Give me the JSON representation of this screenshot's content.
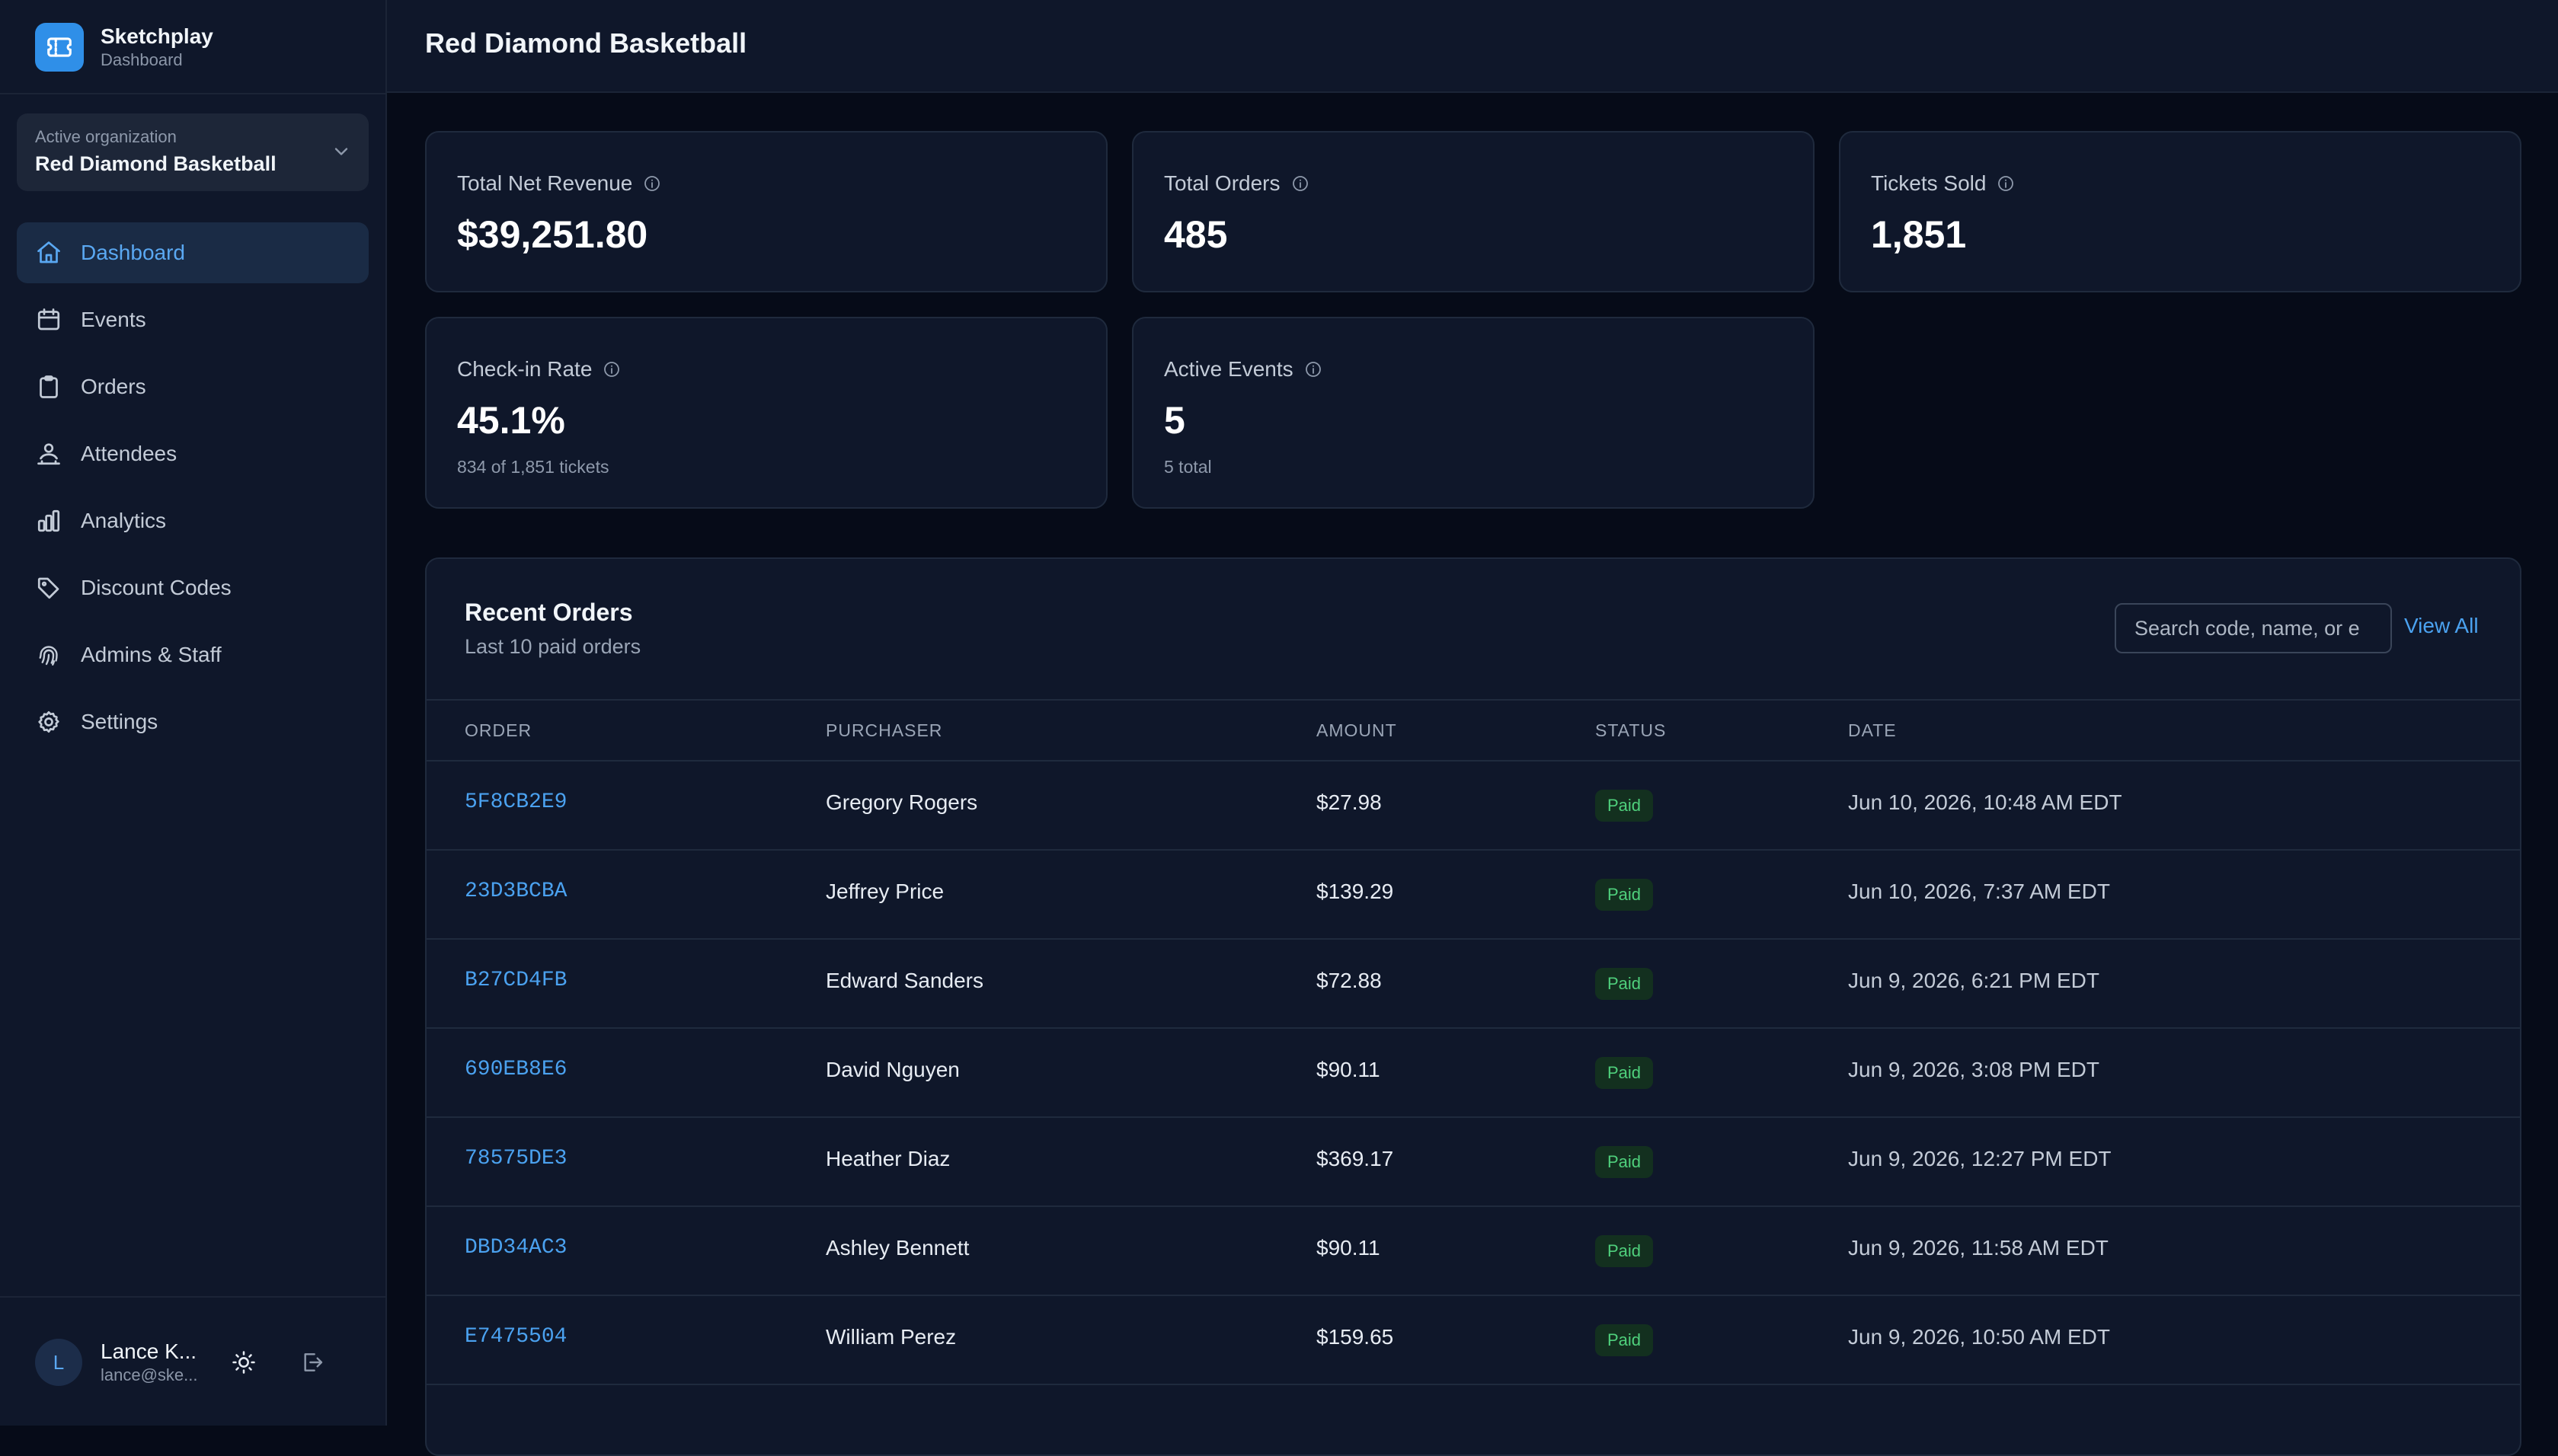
{
  "brand": {
    "name": "Sketchplay",
    "subtitle": "Dashboard"
  },
  "org": {
    "label": "Active organization",
    "name": "Red Diamond Basketball"
  },
  "nav": [
    {
      "label": "Dashboard",
      "icon": "home-icon",
      "active": true
    },
    {
      "label": "Events",
      "icon": "calendar-icon"
    },
    {
      "label": "Orders",
      "icon": "clipboard-icon"
    },
    {
      "label": "Attendees",
      "icon": "users-icon"
    },
    {
      "label": "Analytics",
      "icon": "bar-chart-icon"
    },
    {
      "label": "Discount Codes",
      "icon": "tag-icon"
    },
    {
      "label": "Admins & Staff",
      "icon": "fingerprint-icon"
    },
    {
      "label": "Settings",
      "icon": "gear-icon"
    }
  ],
  "user": {
    "initial": "L",
    "name": "Lance K...",
    "email": "lance@ske..."
  },
  "header": {
    "title": "Red Diamond Basketball"
  },
  "stats": {
    "net_revenue": {
      "label": "Total Net Revenue",
      "value": "$39,251.80"
    },
    "orders": {
      "label": "Total Orders",
      "value": "485"
    },
    "tickets": {
      "label": "Tickets Sold",
      "value": "1,851"
    },
    "checkin": {
      "label": "Check-in Rate",
      "value": "45.1%",
      "sub": "834 of 1,851 tickets"
    },
    "active_events": {
      "label": "Active Events",
      "value": "5",
      "sub": "5 total"
    }
  },
  "recent_orders": {
    "title": "Recent Orders",
    "subtitle": "Last 10 paid orders",
    "search_placeholder": "Search code, name, or e",
    "view_all": "View All",
    "columns": {
      "order": "ORDER",
      "purchaser": "PURCHASER",
      "amount": "AMOUNT",
      "status": "STATUS",
      "date": "DATE"
    },
    "rows": [
      {
        "order": "5F8CB2E9",
        "purchaser": "Gregory Rogers",
        "amount": "$27.98",
        "status": "Paid",
        "date": "Jun 10, 2026, 10:48 AM EDT"
      },
      {
        "order": "23D3BCBA",
        "purchaser": "Jeffrey Price",
        "amount": "$139.29",
        "status": "Paid",
        "date": "Jun 10, 2026, 7:37 AM EDT"
      },
      {
        "order": "B27CD4FB",
        "purchaser": "Edward Sanders",
        "amount": "$72.88",
        "status": "Paid",
        "date": "Jun 9, 2026, 6:21 PM EDT"
      },
      {
        "order": "690EB8E6",
        "purchaser": "David Nguyen",
        "amount": "$90.11",
        "status": "Paid",
        "date": "Jun 9, 2026, 3:08 PM EDT"
      },
      {
        "order": "78575DE3",
        "purchaser": "Heather Diaz",
        "amount": "$369.17",
        "status": "Paid",
        "date": "Jun 9, 2026, 12:27 PM EDT"
      },
      {
        "order": "DBD34AC3",
        "purchaser": "Ashley Bennett",
        "amount": "$90.11",
        "status": "Paid",
        "date": "Jun 9, 2026, 11:58 AM EDT"
      },
      {
        "order": "E7475504",
        "purchaser": "William Perez",
        "amount": "$159.65",
        "status": "Paid",
        "date": "Jun 9, 2026, 10:50 AM EDT"
      }
    ]
  },
  "colors": {
    "accent": "#4ba2f0",
    "background": "#060b18",
    "panel": "#0f172a",
    "paid_badge": "#4fd07c"
  }
}
